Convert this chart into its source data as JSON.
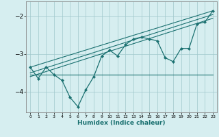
{
  "xlabel": "Humidex (Indice chaleur)",
  "ylabel": "",
  "background_color": "#d6eef0",
  "grid_color": "#a0c8cc",
  "line_color": "#1a7070",
  "xlim": [
    -0.5,
    23.5
  ],
  "ylim": [
    -4.55,
    -1.6
  ],
  "yticks": [
    -4,
    -3,
    -2
  ],
  "xticks": [
    0,
    1,
    2,
    3,
    4,
    5,
    6,
    7,
    8,
    9,
    10,
    11,
    12,
    13,
    14,
    15,
    16,
    17,
    18,
    19,
    20,
    21,
    22,
    23
  ],
  "main_x": [
    0,
    1,
    2,
    3,
    4,
    5,
    6,
    7,
    8,
    9,
    10,
    11,
    12,
    13,
    14,
    15,
    16,
    17,
    18,
    19,
    20,
    21,
    22,
    23
  ],
  "main_y": [
    -3.35,
    -3.65,
    -3.35,
    -3.55,
    -3.7,
    -4.15,
    -4.4,
    -3.95,
    -3.6,
    -3.05,
    -2.9,
    -3.05,
    -2.75,
    -2.6,
    -2.55,
    -2.6,
    -2.65,
    -3.1,
    -3.2,
    -2.85,
    -2.85,
    -2.2,
    -2.15,
    -1.85
  ],
  "line1_x": [
    0,
    23
  ],
  "line1_y": [
    -3.55,
    -3.55
  ],
  "line2_x": [
    0,
    23
  ],
  "line2_y": [
    -3.35,
    -1.85
  ],
  "line3_x": [
    0,
    23
  ],
  "line3_y": [
    -3.5,
    -1.95
  ],
  "line4_x": [
    0,
    23
  ],
  "line4_y": [
    -3.6,
    -2.05
  ]
}
